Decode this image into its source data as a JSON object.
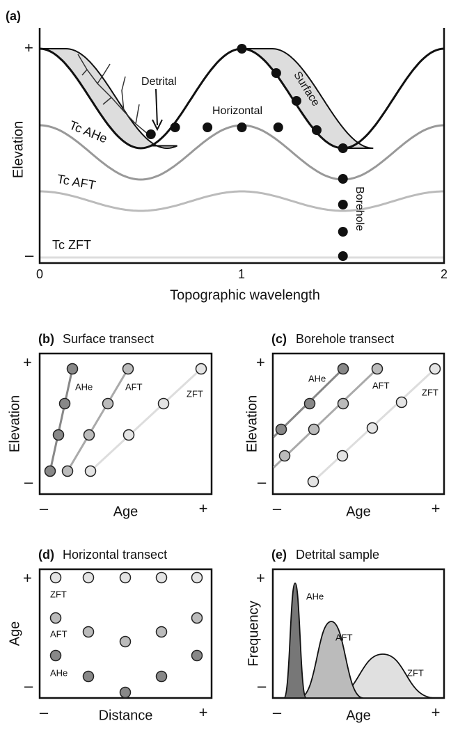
{
  "panel_a": {
    "label": "(a)",
    "y_plus": "+",
    "y_minus": "–",
    "y_axis": "Elevation",
    "x_ticks": [
      "0",
      "1",
      "2"
    ],
    "x_axis": "Topographic wavelength",
    "annotations": {
      "detrital": "Detrital",
      "horizontal": "Horizontal",
      "surface": "Surface",
      "borehole": "Borehole"
    },
    "isotherms": [
      "Tc AHe",
      "Tc AFT",
      "Tc ZFT"
    ]
  },
  "panel_b": {
    "label": "(b)",
    "title": "Surface transect",
    "y_plus": "+",
    "y_minus": "–",
    "y_axis": "Elevation",
    "x_axis": "Age",
    "x_minus": "–",
    "x_plus": "+",
    "series": [
      "AHe",
      "AFT",
      "ZFT"
    ]
  },
  "panel_c": {
    "label": "(c)",
    "title": "Borehole transect",
    "y_plus": "+",
    "y_minus": "–",
    "y_axis": "Elevation",
    "x_axis": "Age",
    "x_minus": "–",
    "x_plus": "+",
    "series": [
      "AHe",
      "AFT",
      "ZFT"
    ]
  },
  "panel_d": {
    "label": "(d)",
    "title": "Horizontal transect",
    "y_plus": "+",
    "y_minus": "–",
    "y_axis": "Age",
    "x_axis": "Distance",
    "x_minus": "–",
    "x_plus": "+",
    "series": [
      "ZFT",
      "AFT",
      "AHe"
    ]
  },
  "panel_e": {
    "label": "(e)",
    "title": "Detrital sample",
    "y_plus": "+",
    "y_minus": "–",
    "y_axis": "Frequency",
    "x_axis": "Age",
    "x_minus": "–",
    "x_plus": "+",
    "series": [
      "AHe",
      "AFT",
      "ZFT"
    ]
  }
}
